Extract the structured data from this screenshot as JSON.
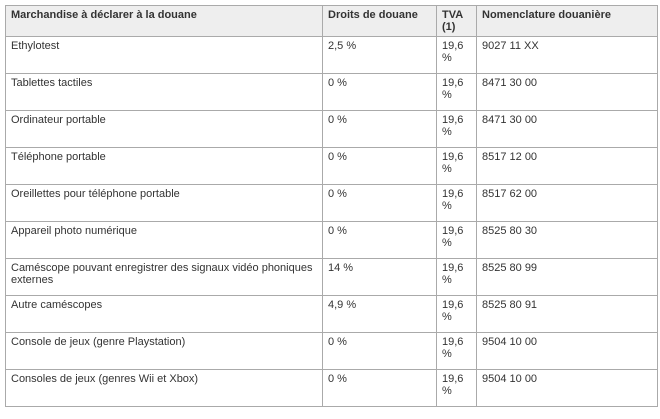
{
  "table": {
    "headers": [
      "Marchandise à déclarer à la douane",
      "Droits de douane",
      "TVA (1)",
      "Nomenclature douanière"
    ],
    "rows": [
      {
        "item": "Ethylotest",
        "duty": "2,5 %",
        "vat": "19,6 %",
        "code": "9027 11 XX"
      },
      {
        "item": "Tablettes tactiles",
        "duty": "0 %",
        "vat": "19,6 %",
        "code": "8471 30 00"
      },
      {
        "item": "Ordinateur portable",
        "duty": "0 %",
        "vat": "19,6 %",
        "code": "8471 30 00"
      },
      {
        "item": "Téléphone portable",
        "duty": "0 %",
        "vat": "19,6 %",
        "code": "8517 12 00"
      },
      {
        "item": "Oreillettes pour téléphone portable",
        "duty": "0 %",
        "vat": "19,6 %",
        "code": "8517 62 00"
      },
      {
        "item": "Appareil photo numérique",
        "duty": "0 %",
        "vat": "19,6 %",
        "code": "8525 80 30"
      },
      {
        "item": "Caméscope pouvant enregistrer des signaux vidéo phoniques externes",
        "duty": "14 %",
        "vat": "19,6 %",
        "code": "8525 80 99"
      },
      {
        "item": "Autre caméscopes",
        "duty": "4,9 %",
        "vat": "19,6 %",
        "code": "8525 80 91"
      },
      {
        "item": "Console de jeux (genre Playstation)",
        "duty": "0 %",
        "vat": "19,6 %",
        "code": "9504 10 00"
      },
      {
        "item": "Consoles de jeux (genres Wii et Xbox)",
        "duty": "0 %",
        "vat": "19,6 %",
        "code": "9504 10 00"
      }
    ]
  }
}
